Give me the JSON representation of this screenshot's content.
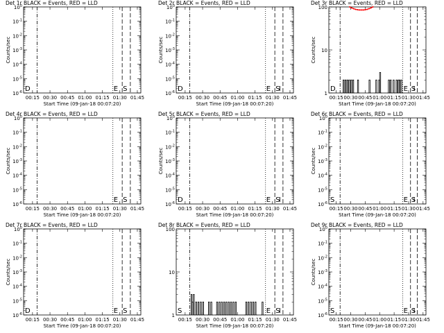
{
  "colors": {
    "events": "#000000",
    "lld": "#ff0000",
    "background": "#ffffff"
  },
  "chart_data": [
    {
      "type": "line",
      "detector": "1r",
      "title": "Det 1r BLACK = Events, RED = LLD",
      "xlabel": "Start Time (09-Jan-18 00:07:20)",
      "ylabel": "Counts/sec",
      "xlim": [
        "00:07:20",
        "01:48:00"
      ],
      "xtick_labels": [
        "00:15",
        "00:30",
        "00:45",
        "01:00",
        "01:15",
        "01:30",
        "01:45"
      ],
      "yscale": "log",
      "ylim": [
        1e-06,
        1
      ],
      "ytick_labels": [
        "10^-6",
        "10^-5",
        "10^-4",
        "10^-3",
        "10^-2",
        "10^-1",
        "10^0"
      ],
      "vlines": [
        {
          "time": "00:19:00",
          "style": "dash-dot"
        },
        {
          "time": "01:24:00",
          "style": "dotted"
        },
        {
          "time": "01:32:00",
          "style": "dashed"
        },
        {
          "time": "01:39:00",
          "style": "dashed"
        }
      ],
      "markers": [
        "D",
        "E",
        "S"
      ],
      "series": []
    },
    {
      "type": "line",
      "detector": "2r",
      "title": "Det 2r BLACK = Events, RED = LLD",
      "xlabel": "Start Time (09-Jan-18 00:07:20)",
      "ylabel": "Counts/sec",
      "xlim": [
        "00:07:20",
        "01:48:00"
      ],
      "xtick_labels": [
        "00:15",
        "00:30",
        "00:45",
        "01:00",
        "01:15",
        "01:30",
        "01:45"
      ],
      "yscale": "log",
      "ylim": [
        1e-06,
        1
      ],
      "ytick_labels": [
        "10^-6",
        "10^-5",
        "10^-4",
        "10^-3",
        "10^-2",
        "10^-1",
        "10^0"
      ],
      "vlines": [
        {
          "time": "00:19:00",
          "style": "dash-dot"
        },
        {
          "time": "01:24:00",
          "style": "dotted"
        },
        {
          "time": "01:32:00",
          "style": "dashed"
        },
        {
          "time": "01:39:00",
          "style": "dashed"
        }
      ],
      "markers": [
        "D",
        "E",
        "S",
        "I"
      ],
      "series": []
    },
    {
      "type": "line",
      "detector": "3r",
      "title": "Det 3r BLACK = Events, RED = LLD",
      "xlabel": "Start Time (09-Jan-18 00:07:20)",
      "ylabel": "Counts/sec",
      "xlim": [
        "00:07:20",
        "01:48:00"
      ],
      "xtick_labels": [
        "00:15",
        "00:30",
        "00:45",
        "01:00",
        "01:15",
        "01:30",
        "01:45"
      ],
      "yscale": "log",
      "ylim": [
        1,
        100
      ],
      "ytick_labels": [
        "1",
        "10",
        "100"
      ],
      "vlines": [
        {
          "time": "00:19:00",
          "style": "dash-dot"
        },
        {
          "time": "01:24:00",
          "style": "dotted"
        },
        {
          "time": "01:32:00",
          "style": "dashed"
        },
        {
          "time": "01:39:00",
          "style": "dashed"
        }
      ],
      "markers": [
        "D",
        "E",
        "S",
        "I"
      ],
      "series": [
        {
          "role": "events",
          "color": "#000000",
          "points": [
            [
              "00:20",
              1
            ],
            [
              "00:22",
              2
            ],
            [
              "00:23",
              1
            ],
            [
              "00:24",
              2
            ],
            [
              "00:25",
              1
            ],
            [
              "00:26",
              2
            ],
            [
              "00:27",
              1
            ],
            [
              "00:28",
              2
            ],
            [
              "00:29",
              1
            ],
            [
              "00:30",
              2
            ],
            [
              "00:31",
              1
            ],
            [
              "00:32",
              2
            ],
            [
              "00:33",
              1
            ],
            [
              "00:36",
              1
            ],
            [
              "00:37",
              2
            ],
            [
              "00:38",
              1
            ],
            [
              "00:48",
              1
            ],
            [
              "00:49",
              2
            ],
            [
              "00:50",
              1
            ],
            [
              "00:55",
              1
            ],
            [
              "00:56",
              2
            ],
            [
              "00:57",
              1
            ],
            [
              "00:59",
              2
            ],
            [
              "01:00",
              3
            ],
            [
              "01:01",
              1
            ],
            [
              "01:08",
              1
            ],
            [
              "01:09",
              2
            ],
            [
              "01:10",
              1
            ],
            [
              "01:11",
              2
            ],
            [
              "01:12",
              1
            ],
            [
              "01:14",
              2
            ],
            [
              "01:15",
              1
            ],
            [
              "01:17",
              2
            ],
            [
              "01:18",
              1
            ],
            [
              "01:19",
              2
            ],
            [
              "01:20",
              2
            ],
            [
              "01:21",
              1
            ],
            [
              "01:22",
              2
            ],
            [
              "01:23",
              1
            ]
          ]
        },
        {
          "role": "lld",
          "color": "#ff0000",
          "points": [
            [
              "00:29",
              100
            ],
            [
              "00:31",
              95
            ],
            [
              "00:33",
              91
            ],
            [
              "00:35",
              88
            ],
            [
              "00:37",
              86
            ],
            [
              "00:39",
              85
            ],
            [
              "00:41",
              85
            ],
            [
              "00:43",
              85
            ],
            [
              "00:45",
              86
            ],
            [
              "00:47",
              88
            ],
            [
              "00:49",
              91
            ],
            [
              "00:51",
              95
            ],
            [
              "00:53",
              100
            ]
          ]
        }
      ]
    },
    {
      "type": "line",
      "detector": "4r",
      "title": "Det 4r BLACK = Events, RED = LLD",
      "xlabel": "Start Time (09-Jan-18 00:07:20)",
      "ylabel": "Counts/sec",
      "xlim": [
        "00:07:20",
        "01:48:00"
      ],
      "xtick_labels": [
        "00:15",
        "00:30",
        "00:45",
        "01:00",
        "01:15",
        "01:30",
        "01:45"
      ],
      "yscale": "log",
      "ylim": [
        1e-06,
        1
      ],
      "ytick_labels": [
        "10^-6",
        "10^-5",
        "10^-4",
        "10^-3",
        "10^-2",
        "10^-1",
        "10^0"
      ],
      "vlines": [
        {
          "time": "00:19:00",
          "style": "dash-dot"
        },
        {
          "time": "01:24:00",
          "style": "dotted"
        },
        {
          "time": "01:32:00",
          "style": "dashed"
        },
        {
          "time": "01:39:00",
          "style": "dashed"
        }
      ],
      "markers": [
        "E",
        "S"
      ],
      "series": []
    },
    {
      "type": "line",
      "detector": "5r",
      "title": "Det 5r BLACK = Events, RED = LLD",
      "xlabel": "Start Time (09-Jan-18 00:07:20)",
      "ylabel": "Counts/sec",
      "xlim": [
        "00:07:20",
        "01:48:00"
      ],
      "xtick_labels": [
        "00:15",
        "00:30",
        "00:45",
        "01:00",
        "01:15",
        "01:30",
        "01:45"
      ],
      "yscale": "log",
      "ylim": [
        1e-06,
        1
      ],
      "ytick_labels": [
        "10^-6",
        "10^-5",
        "10^-4",
        "10^-3",
        "10^-2",
        "10^-1",
        "10^0"
      ],
      "vlines": [
        {
          "time": "00:19:00",
          "style": "dash-dot"
        },
        {
          "time": "01:24:00",
          "style": "dotted"
        },
        {
          "time": "01:32:00",
          "style": "dashed"
        },
        {
          "time": "01:39:00",
          "style": "dashed"
        }
      ],
      "markers": [
        "D",
        "E",
        "S",
        "I"
      ],
      "series": []
    },
    {
      "type": "line",
      "detector": "6r",
      "title": "Det 6r BLACK = Events, RED = LLD",
      "xlabel": "Start Time (09-Jan-18 00:07:20)",
      "ylabel": "Counts/sec",
      "xlim": [
        "00:07:20",
        "01:48:00"
      ],
      "xtick_labels": [
        "00:15",
        "00:30",
        "00:45",
        "01:00",
        "01:15",
        "01:30",
        "01:45"
      ],
      "yscale": "log",
      "ylim": [
        1e-06,
        1
      ],
      "ytick_labels": [
        "10^-6",
        "10^-5",
        "10^-4",
        "10^-3",
        "10^-2",
        "10^-1",
        "10^0"
      ],
      "vlines": [
        {
          "time": "00:19:00",
          "style": "dash-dot"
        },
        {
          "time": "01:24:00",
          "style": "dotted"
        },
        {
          "time": "01:32:00",
          "style": "dashed"
        },
        {
          "time": "01:39:00",
          "style": "dashed"
        }
      ],
      "markers": [
        "S",
        "E",
        "S",
        "I"
      ],
      "series": []
    },
    {
      "type": "line",
      "detector": "7r",
      "title": "Det 7r BLACK = Events, RED = LLD",
      "xlabel": "Start Time (09-Jan-18 00:07:20)",
      "ylabel": "Counts/sec",
      "xlim": [
        "00:07:20",
        "01:48:00"
      ],
      "xtick_labels": [
        "00:15",
        "00:30",
        "00:45",
        "01:00",
        "01:15",
        "01:30",
        "01:45"
      ],
      "yscale": "log",
      "ylim": [
        1e-06,
        1
      ],
      "ytick_labels": [
        "10^-6",
        "10^-5",
        "10^-4",
        "10^-3",
        "10^-2",
        "10^-1",
        "10^0"
      ],
      "vlines": [
        {
          "time": "00:19:00",
          "style": "dash-dot"
        },
        {
          "time": "01:24:00",
          "style": "dotted"
        },
        {
          "time": "01:32:00",
          "style": "dashed"
        },
        {
          "time": "01:39:00",
          "style": "dashed"
        }
      ],
      "markers": [
        "D",
        "E",
        "S"
      ],
      "series": []
    },
    {
      "type": "line",
      "detector": "8r",
      "title": "Det 8r BLACK = Events, RED = LLD",
      "xlabel": "Start Time (09-Jan-18 00:07:20)",
      "ylabel": "",
      "xlim": [
        "00:07:20",
        "01:48:00"
      ],
      "xtick_labels": [
        "00:15",
        "00:30",
        "00:45",
        "01:00",
        "01:15",
        "01:30",
        "01:45"
      ],
      "yscale": "log",
      "ylim": [
        1,
        100
      ],
      "ytick_labels": [
        "1",
        "10",
        "100"
      ],
      "vlines": [
        {
          "time": "00:19:00",
          "style": "dash-dot"
        },
        {
          "time": "01:24:00",
          "style": "dotted"
        },
        {
          "time": "01:32:00",
          "style": "dashed"
        },
        {
          "time": "01:39:00",
          "style": "dashed"
        }
      ],
      "markers": [
        "S",
        "E",
        "S",
        "I"
      ],
      "series": [
        {
          "role": "events",
          "color": "#000000",
          "points": [
            [
              "00:20",
              3
            ],
            [
              "00:21",
              2
            ],
            [
              "00:22",
              3
            ],
            [
              "00:23",
              1
            ],
            [
              "00:24",
              2
            ],
            [
              "00:25",
              1
            ],
            [
              "00:26",
              2
            ],
            [
              "00:27",
              1
            ],
            [
              "00:28",
              2
            ],
            [
              "00:29",
              1
            ],
            [
              "00:30",
              2
            ],
            [
              "00:31",
              1
            ],
            [
              "00:34",
              1
            ],
            [
              "00:35",
              2
            ],
            [
              "00:36",
              1
            ],
            [
              "00:37",
              2
            ],
            [
              "00:38",
              1
            ],
            [
              "00:41",
              1
            ],
            [
              "00:42",
              2
            ],
            [
              "00:43",
              1
            ],
            [
              "00:44",
              2
            ],
            [
              "00:45",
              1
            ],
            [
              "00:46",
              2
            ],
            [
              "00:47",
              1
            ],
            [
              "00:48",
              2
            ],
            [
              "00:49",
              1
            ],
            [
              "00:50",
              2
            ],
            [
              "00:51",
              1
            ],
            [
              "00:52",
              2
            ],
            [
              "00:53",
              1
            ],
            [
              "00:54",
              2
            ],
            [
              "00:55",
              1
            ],
            [
              "00:56",
              2
            ],
            [
              "00:57",
              1
            ],
            [
              "00:58",
              2
            ],
            [
              "00:59",
              1
            ],
            [
              "01:06",
              1
            ],
            [
              "01:07",
              2
            ],
            [
              "01:08",
              1
            ],
            [
              "01:09",
              2
            ],
            [
              "01:10",
              1
            ],
            [
              "01:11",
              2
            ],
            [
              "01:12",
              1
            ],
            [
              "01:13",
              2
            ],
            [
              "01:14",
              1
            ],
            [
              "01:15",
              2
            ],
            [
              "01:16",
              1
            ],
            [
              "01:20",
              1
            ],
            [
              "01:21",
              2
            ],
            [
              "01:22",
              1
            ]
          ]
        }
      ]
    },
    {
      "type": "line",
      "detector": "9r",
      "title": "Det 9r BLACK = Events, RED = LLD",
      "xlabel": "Start Time (09-Jan-18 00:07:20)",
      "ylabel": "Counts/sec",
      "xlim": [
        "00:07:20",
        "01:48:00"
      ],
      "xtick_labels": [
        "00:15",
        "00:30",
        "00:45",
        "01:00",
        "01:15",
        "01:30",
        "01:45"
      ],
      "yscale": "log",
      "ylim": [
        1e-06,
        1
      ],
      "ytick_labels": [
        "10^-6",
        "10^-5",
        "10^-4",
        "10^-3",
        "10^-2",
        "10^-1",
        "10^0"
      ],
      "vlines": [
        {
          "time": "00:19:00",
          "style": "dash-dot"
        },
        {
          "time": "01:24:00",
          "style": "dotted"
        },
        {
          "time": "01:32:00",
          "style": "dashed"
        },
        {
          "time": "01:39:00",
          "style": "dashed"
        }
      ],
      "markers": [
        "S",
        "E",
        "S",
        "I"
      ],
      "series": []
    }
  ]
}
